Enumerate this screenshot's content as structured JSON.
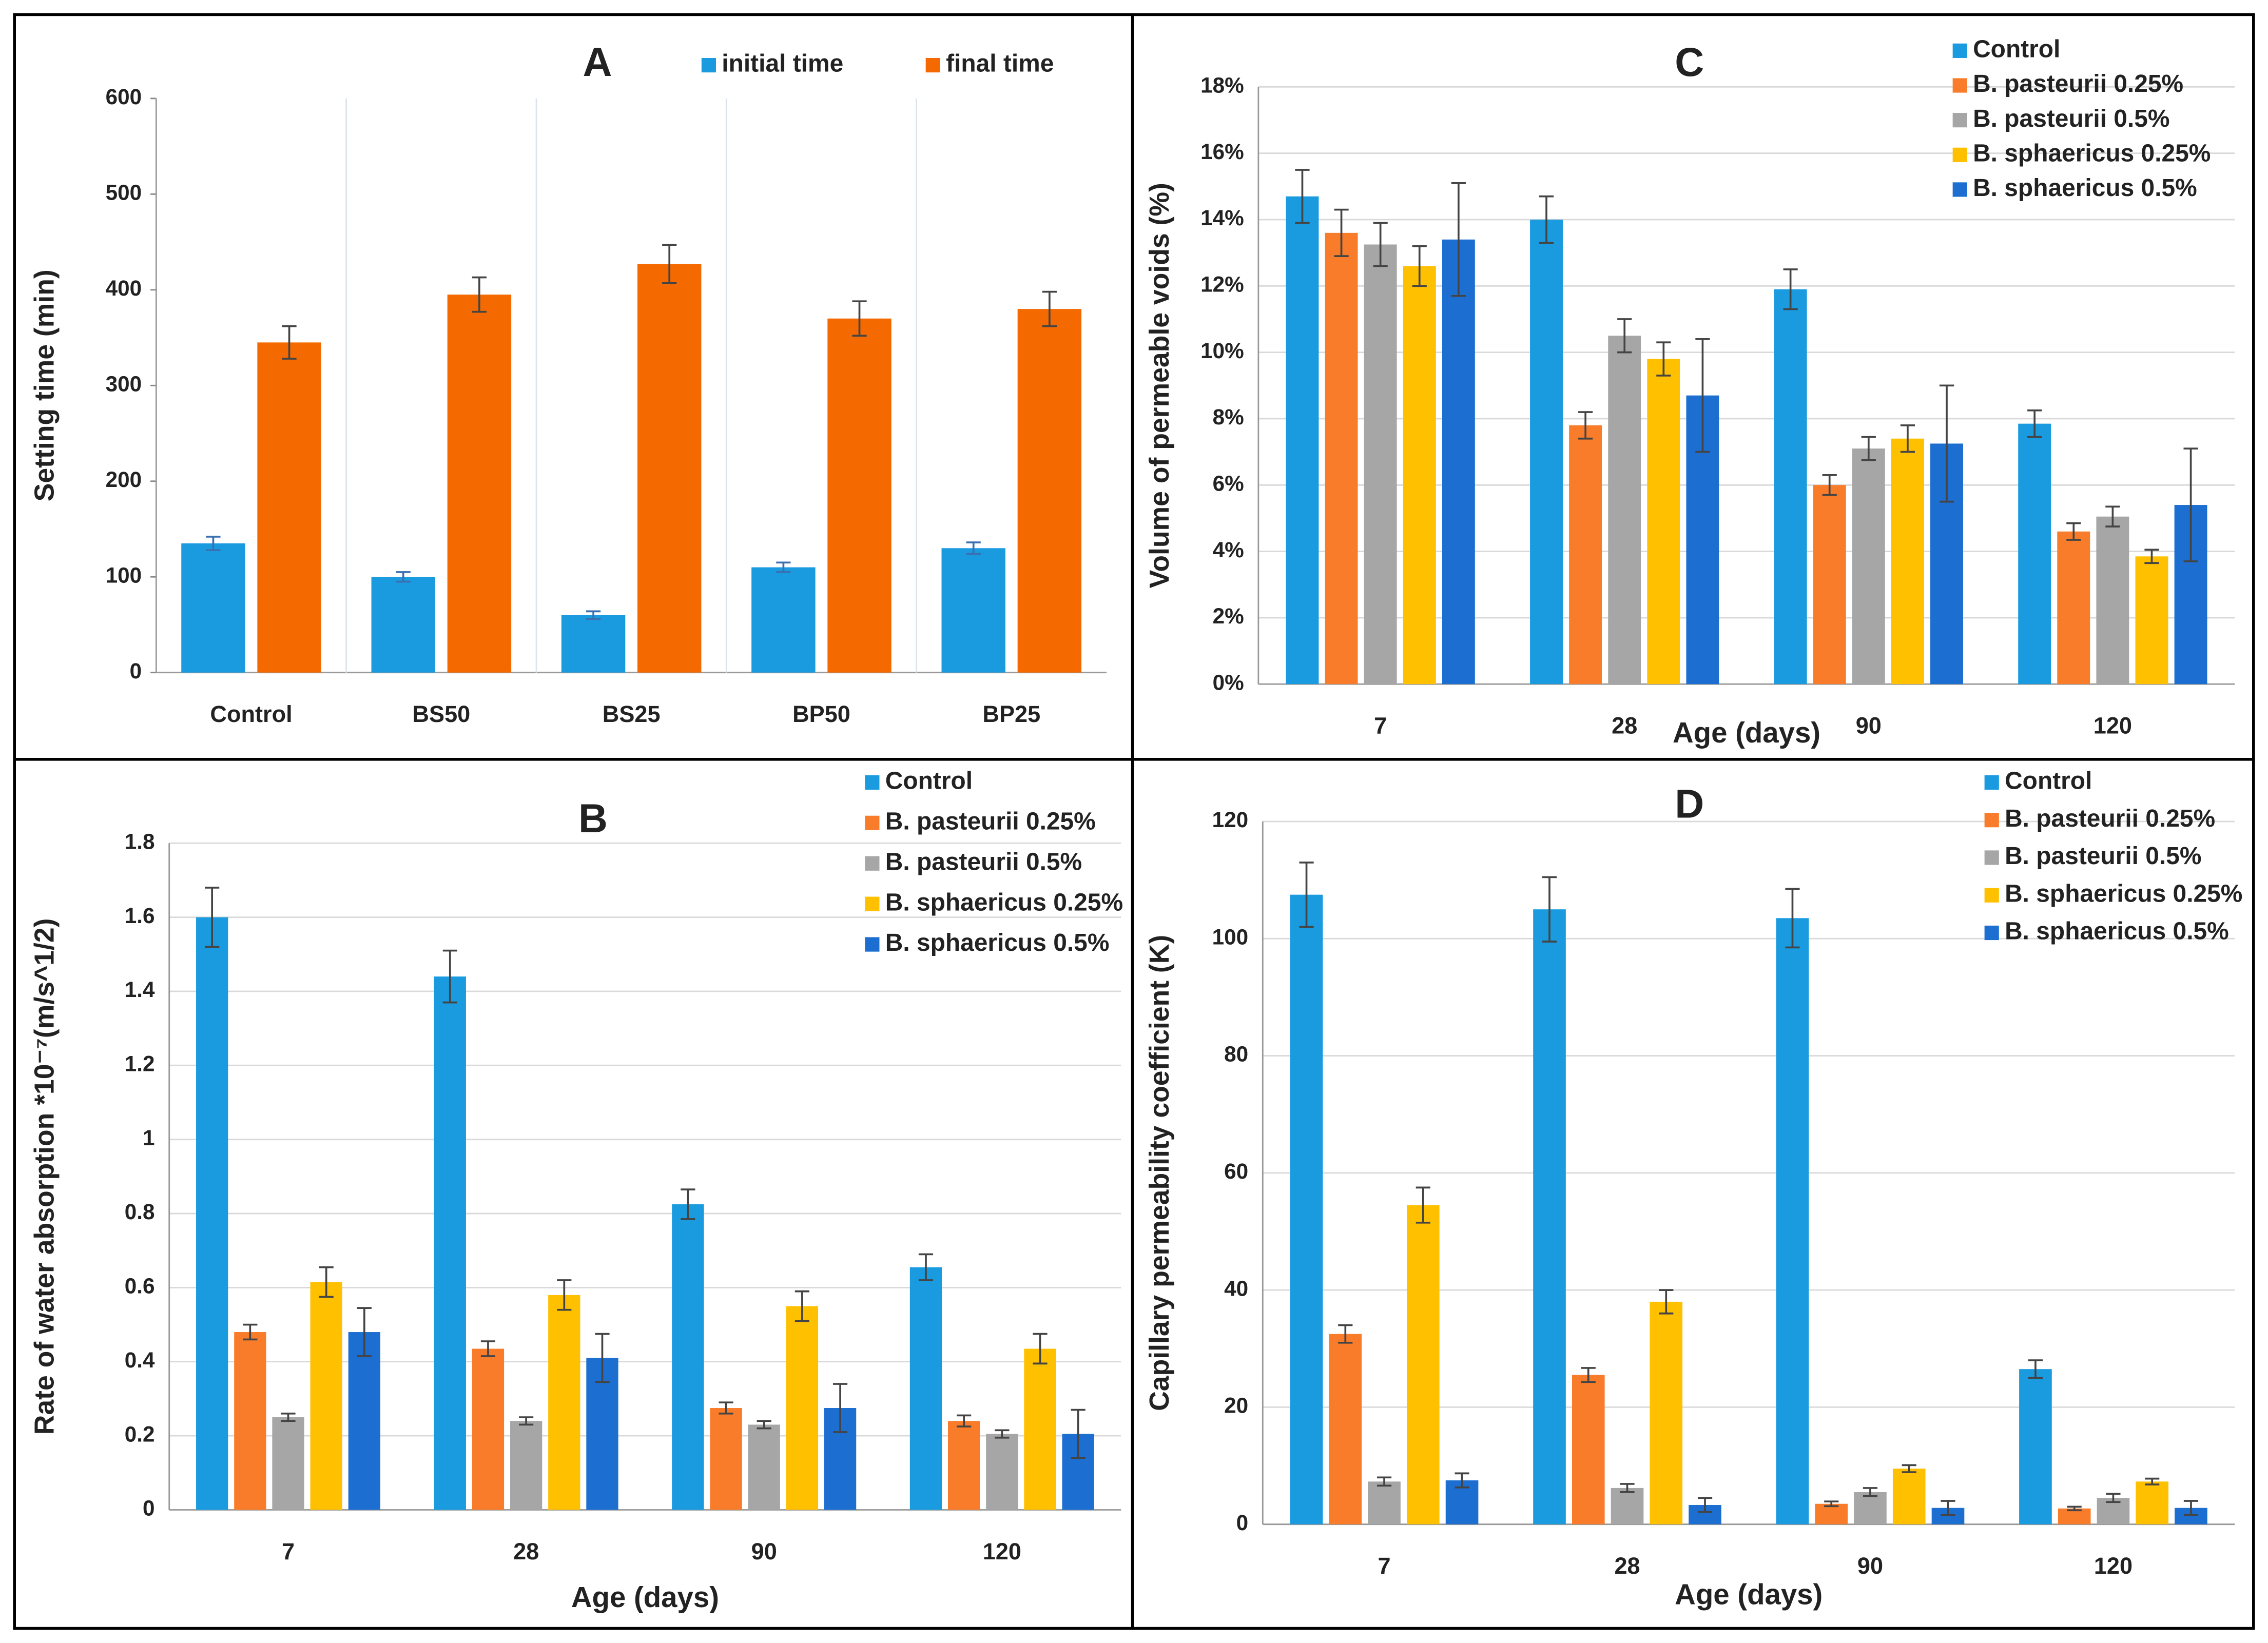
{
  "chart_data": [
    {
      "type": "bar",
      "title": "A",
      "y_label": "Setting time (min)",
      "categories": [
        "Control",
        "BS50",
        "BS25",
        "BP50",
        "BP25"
      ],
      "series": [
        {
          "name": "initial time",
          "color": "#1a9be0",
          "values": [
            135,
            100,
            60,
            110,
            130
          ],
          "errors": [
            7,
            5,
            4,
            5,
            6
          ]
        },
        {
          "name": "final time",
          "color": "#f56a00",
          "values": [
            345,
            395,
            427,
            370,
            380
          ],
          "errors": [
            17,
            18,
            20,
            18,
            18
          ]
        }
      ],
      "ylim": [
        0,
        600
      ],
      "yticks": [
        0,
        100,
        200,
        300,
        400,
        500,
        600
      ],
      "grid": false
    },
    {
      "type": "bar",
      "title": "C",
      "x_label": "Age (days)",
      "y_label": "Volume of permeable voids (%)",
      "categories": [
        "7",
        "28",
        "90",
        "120"
      ],
      "series": [
        {
          "name": "Control",
          "color": "#1a9be0",
          "values": [
            14.7,
            14.0,
            11.9,
            7.85
          ],
          "errors": [
            0.8,
            0.7,
            0.6,
            0.4
          ]
        },
        {
          "name": "B. pasteurii 0.25%",
          "color": "#f97c2a",
          "values": [
            13.6,
            7.8,
            6.0,
            4.6
          ],
          "errors": [
            0.7,
            0.4,
            0.3,
            0.25
          ]
        },
        {
          "name": "B. pasteurii 0.5%",
          "color": "#a6a6a6",
          "values": [
            13.25,
            10.5,
            7.1,
            5.05
          ],
          "errors": [
            0.65,
            0.5,
            0.35,
            0.3
          ]
        },
        {
          "name": "B. sphaericus 0.25%",
          "color": "#ffc000",
          "values": [
            12.6,
            9.8,
            7.4,
            3.85
          ],
          "errors": [
            0.6,
            0.5,
            0.4,
            0.2
          ]
        },
        {
          "name": "B. sphaericus 0.5%",
          "color": "#1c6fd1",
          "values": [
            13.4,
            8.7,
            7.25,
            5.4
          ],
          "errors": [
            1.7,
            1.7,
            1.75,
            1.7
          ]
        }
      ],
      "ylim": [
        0,
        18
      ],
      "yticks": [
        {
          "value": 0,
          "label": "0%"
        },
        {
          "value": 2,
          "label": "2%"
        },
        {
          "value": 4,
          "label": "4%"
        },
        {
          "value": 6,
          "label": "6%"
        },
        {
          "value": 8,
          "label": "8%"
        },
        {
          "value": 10,
          "label": "10%"
        },
        {
          "value": 12,
          "label": "12%"
        },
        {
          "value": 14,
          "label": "14%"
        },
        {
          "value": 16,
          "label": "16%"
        },
        {
          "value": 18,
          "label": "18%"
        }
      ],
      "grid": true
    },
    {
      "type": "bar",
      "title": "B",
      "x_label": "Age (days)",
      "y_label": "Rate of water absorption *10⁻⁷(m/s^1/2)",
      "categories": [
        "7",
        "28",
        "90",
        "120"
      ],
      "series": [
        {
          "name": "Control",
          "color": "#1a9be0",
          "values": [
            1.6,
            1.44,
            0.825,
            0.655
          ],
          "errors": [
            0.08,
            0.07,
            0.04,
            0.035
          ]
        },
        {
          "name": "B. pasteurii 0.25%",
          "color": "#f97c2a",
          "values": [
            0.48,
            0.435,
            0.275,
            0.24
          ],
          "errors": [
            0.02,
            0.02,
            0.015,
            0.015
          ]
        },
        {
          "name": "B. pasteurii 0.5%",
          "color": "#a6a6a6",
          "values": [
            0.25,
            0.24,
            0.23,
            0.205
          ],
          "errors": [
            0.01,
            0.01,
            0.01,
            0.01
          ]
        },
        {
          "name": "B. sphaericus 0.25%",
          "color": "#ffc000",
          "values": [
            0.615,
            0.58,
            0.55,
            0.435
          ],
          "errors": [
            0.04,
            0.04,
            0.04,
            0.04
          ]
        },
        {
          "name": "B. sphaericus 0.5%",
          "color": "#1c6fd1",
          "values": [
            0.48,
            0.41,
            0.275,
            0.205
          ],
          "errors": [
            0.065,
            0.065,
            0.065,
            0.065
          ]
        }
      ],
      "ylim": [
        0,
        1.8
      ],
      "yticks": [
        0,
        0.2,
        0.4,
        0.6,
        0.8,
        1,
        1.2,
        1.4,
        1.6,
        1.8
      ],
      "grid": true
    },
    {
      "type": "bar",
      "title": "D",
      "x_label": "Age (days)",
      "y_label": "Capillary permeability coefficient (K)",
      "categories": [
        "7",
        "28",
        "90",
        "120"
      ],
      "series": [
        {
          "name": "Control",
          "color": "#1a9be0",
          "values": [
            107.5,
            105,
            103.5,
            26.5
          ],
          "errors": [
            5.5,
            5.5,
            5,
            1.5
          ]
        },
        {
          "name": "B. pasteurii 0.25%",
          "color": "#f97c2a",
          "values": [
            32.5,
            25.5,
            3.5,
            2.7
          ],
          "errors": [
            1.5,
            1.2,
            0.4,
            0.3
          ]
        },
        {
          "name": "B. pasteurii 0.5%",
          "color": "#a6a6a6",
          "values": [
            7.3,
            6.2,
            5.5,
            4.5
          ],
          "errors": [
            0.7,
            0.7,
            0.7,
            0.7
          ]
        },
        {
          "name": "B. sphaericus 0.25%",
          "color": "#ffc000",
          "values": [
            54.5,
            38,
            9.5,
            7.3
          ],
          "errors": [
            3,
            2,
            0.6,
            0.5
          ]
        },
        {
          "name": "B. sphaericus 0.5%",
          "color": "#1c6fd1",
          "values": [
            7.5,
            3.3,
            2.8,
            2.8
          ],
          "errors": [
            1.2,
            1.2,
            1.2,
            1.2
          ]
        }
      ],
      "ylim": [
        0,
        120
      ],
      "yticks": [
        0,
        20,
        40,
        60,
        80,
        100,
        120
      ],
      "grid": true
    }
  ]
}
